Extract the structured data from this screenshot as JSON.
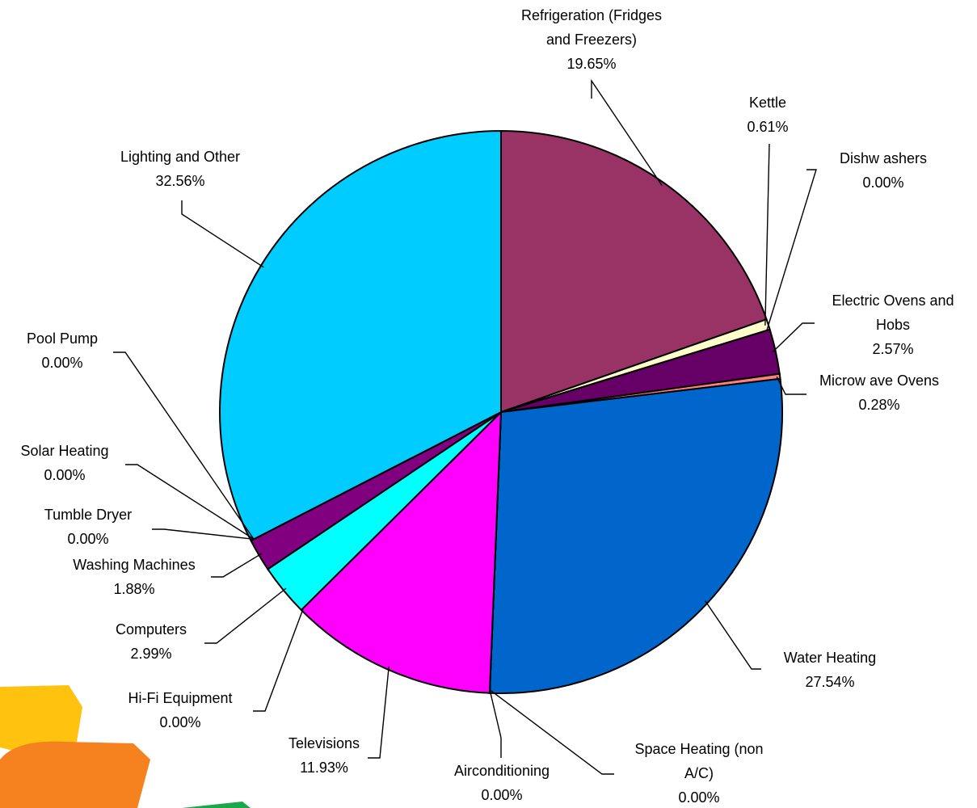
{
  "chart_data": {
    "type": "pie",
    "title": "",
    "start_angle_deg": 0,
    "direction": "clockwise",
    "slices": [
      {
        "name": "Refrigeration (Fridges and Freezers)",
        "label_lines": [
          "Refrigeration (Fridges",
          "and Freezers)"
        ],
        "value_label": "19.65%",
        "value": 19.65,
        "color": "#993366"
      },
      {
        "name": "Kettle",
        "label_lines": [
          "Kettle"
        ],
        "value_label": "0.61%",
        "value": 0.61,
        "color": "#FFFFCC"
      },
      {
        "name": "Dishwashers",
        "label_lines": [
          "Dishw ashers"
        ],
        "value_label": "0.00%",
        "value": 0.0,
        "color": "#CCFFFF"
      },
      {
        "name": "Electric Ovens and Hobs",
        "label_lines": [
          "Electric Ovens and",
          "Hobs"
        ],
        "value_label": "2.57%",
        "value": 2.57,
        "color": "#660066"
      },
      {
        "name": "Microwave Ovens",
        "label_lines": [
          "Microw ave Ovens"
        ],
        "value_label": "0.28%",
        "value": 0.28,
        "color": "#FF8080"
      },
      {
        "name": "Water Heating",
        "label_lines": [
          "Water Heating"
        ],
        "value_label": "27.54%",
        "value": 27.54,
        "color": "#0066CC"
      },
      {
        "name": "Space Heating (non A/C)",
        "label_lines": [
          "Space Heating (non",
          "A/C)"
        ],
        "value_label": "0.00%",
        "value": 0.0,
        "color": "#CCCCFF"
      },
      {
        "name": "Airconditioning",
        "label_lines": [
          "Airconditioning"
        ],
        "value_label": "0.00%",
        "value": 0.0,
        "color": "#000080"
      },
      {
        "name": "Televisions",
        "label_lines": [
          "Televisions"
        ],
        "value_label": "11.93%",
        "value": 11.93,
        "color": "#FF00FF"
      },
      {
        "name": "Hi-Fi Equipment",
        "label_lines": [
          "Hi-Fi Equipment"
        ],
        "value_label": "0.00%",
        "value": 0.0,
        "color": "#FFFF00"
      },
      {
        "name": "Computers",
        "label_lines": [
          "Computers"
        ],
        "value_label": "2.99%",
        "value": 2.99,
        "color": "#00FFFF"
      },
      {
        "name": "Washing Machines",
        "label_lines": [
          "Washing Machines"
        ],
        "value_label": "1.88%",
        "value": 1.88,
        "color": "#800080"
      },
      {
        "name": "Tumble Dryer",
        "label_lines": [
          "Tumble Dryer"
        ],
        "value_label": "0.00%",
        "value": 0.0,
        "color": "#800000"
      },
      {
        "name": "Solar Heating",
        "label_lines": [
          "Solar Heating"
        ],
        "value_label": "0.00%",
        "value": 0.0,
        "color": "#008080"
      },
      {
        "name": "Pool Pump",
        "label_lines": [
          "Pool Pump"
        ],
        "value_label": "0.00%",
        "value": 0.0,
        "color": "#0000FF"
      },
      {
        "name": "Lighting and Other",
        "label_lines": [
          "Lighting and Other"
        ],
        "value_label": "32.56%",
        "value": 32.56,
        "color": "#00CCFF"
      }
    ]
  },
  "decoration": {
    "shapes": [
      {
        "name": "yellow-shape",
        "color": "#FFC20E"
      },
      {
        "name": "orange-shape",
        "color": "#F5821F"
      },
      {
        "name": "green-shape",
        "color": "#1BA84A"
      }
    ]
  }
}
